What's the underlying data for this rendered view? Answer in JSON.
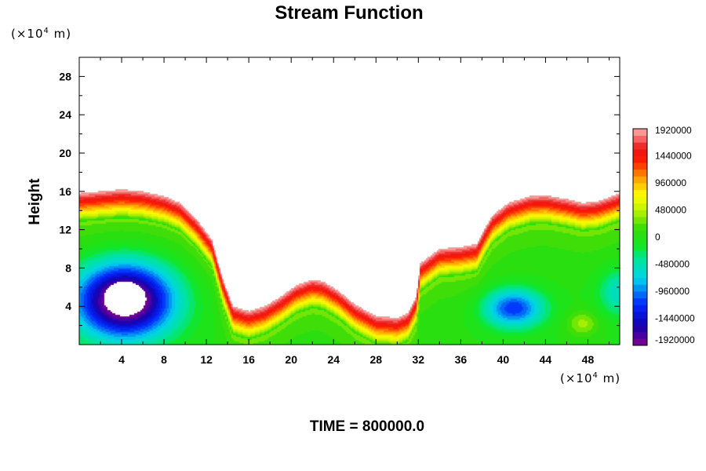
{
  "chart_data": {
    "type": "heatmap",
    "title": "Stream Function",
    "xlabel": "",
    "ylabel": "Height",
    "x_unit": {
      "prefix": "(×10",
      "exp": "4",
      "suffix": " m)"
    },
    "y_unit": {
      "prefix": "(×10",
      "exp": "4",
      "suffix": " m)"
    },
    "xlim": [
      0,
      51
    ],
    "ylim": [
      0,
      30
    ],
    "x_ticks": [
      4,
      8,
      12,
      16,
      20,
      24,
      28,
      32,
      36,
      40,
      44,
      48
    ],
    "y_ticks": [
      4,
      8,
      12,
      16,
      20,
      24,
      28
    ],
    "grid": false,
    "colorbar": {
      "placement": "right",
      "vmin": -1920000,
      "vmax": 1920000,
      "tick_labels": [
        "1920000",
        "1440000",
        "960000",
        "480000",
        "0",
        "-480000",
        "-960000",
        "-1440000",
        "-1920000"
      ],
      "tick_values": [
        1920000,
        1440000,
        960000,
        480000,
        0,
        -480000,
        -960000,
        -1440000,
        -1920000
      ]
    },
    "field": {
      "background": 0,
      "features": [
        {
          "x": 4.3,
          "y": 4.6,
          "sx": 4.5,
          "sy": 3.8,
          "amp": -2300000
        },
        {
          "x": 41,
          "y": 3.8,
          "sx": 2.8,
          "sy": 2.0,
          "amp": -1200000
        },
        {
          "x": 51,
          "y": 5.5,
          "sx": 2.0,
          "sy": 2.5,
          "amp": -600000
        },
        {
          "x": 47.5,
          "y": 2.2,
          "sx": 1.5,
          "sy": 1.3,
          "amp": 400000
        }
      ],
      "blank_hole": {
        "x": 4.3,
        "y": 4.8,
        "rx": 2.0,
        "ry": 1.8
      },
      "upper_boundary": [
        [
          0,
          15.8
        ],
        [
          2,
          16.0
        ],
        [
          4,
          16.2
        ],
        [
          6,
          16.0
        ],
        [
          8,
          15.5
        ],
        [
          9.5,
          14.8
        ],
        [
          11,
          13.2
        ],
        [
          12.5,
          11.0
        ],
        [
          13.5,
          7.0
        ],
        [
          14.5,
          4.0
        ],
        [
          16,
          3.5
        ],
        [
          17.5,
          4.0
        ],
        [
          19,
          5.0
        ],
        [
          20.5,
          6.2
        ],
        [
          22,
          6.8
        ],
        [
          23,
          6.6
        ],
        [
          24.5,
          5.6
        ],
        [
          26,
          4.2
        ],
        [
          28,
          3.0
        ],
        [
          30,
          2.8
        ],
        [
          31,
          3.3
        ],
        [
          31.8,
          5.0
        ],
        [
          32.2,
          8.5
        ],
        [
          34,
          10.0
        ],
        [
          36,
          10.2
        ],
        [
          37.5,
          10.5
        ],
        [
          38.2,
          12.0
        ],
        [
          39,
          13.5
        ],
        [
          40.5,
          14.8
        ],
        [
          42.5,
          15.5
        ],
        [
          44,
          15.6
        ],
        [
          46,
          15.2
        ],
        [
          47.5,
          14.8
        ],
        [
          49,
          15.0
        ],
        [
          51,
          15.8
        ]
      ],
      "band_width": 3.0
    }
  },
  "footer": {
    "time_label": "TIME = 800000.0"
  }
}
